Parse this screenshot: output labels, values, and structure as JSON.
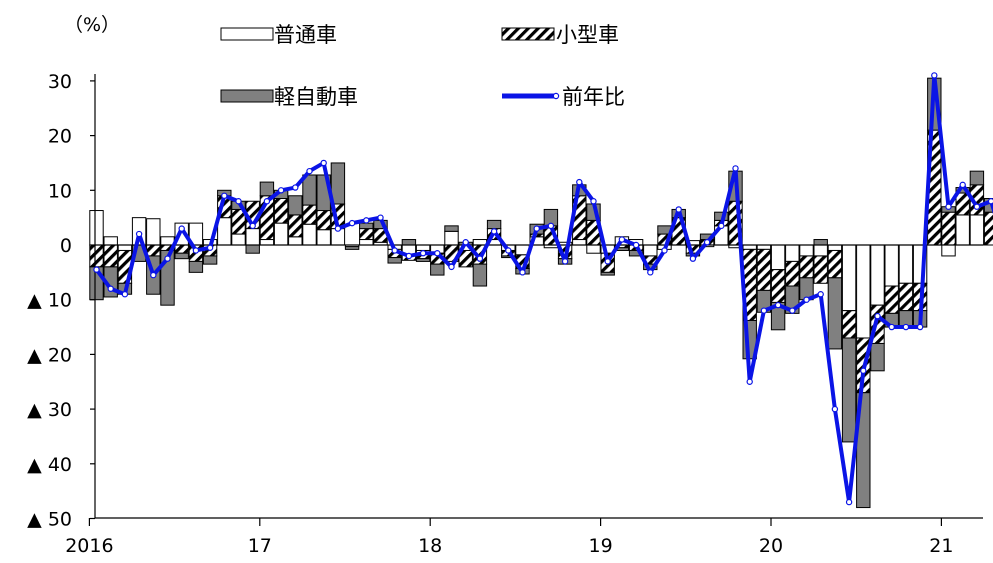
{
  "chart_data": {
    "type": "bar",
    "subtype": "stacked-bar-with-line",
    "unit_label": "（%）",
    "ylim": [
      -50,
      35
    ],
    "yticks": [
      {
        "value": 30,
        "label": "30"
      },
      {
        "value": 20,
        "label": "20"
      },
      {
        "value": 10,
        "label": "10"
      },
      {
        "value": 0,
        "label": "0"
      },
      {
        "value": -10,
        "label": "▲ 10"
      },
      {
        "value": -20,
        "label": "▲ 20"
      },
      {
        "value": -30,
        "label": "▲ 30"
      },
      {
        "value": -40,
        "label": "▲ 40"
      },
      {
        "value": -50,
        "label": "▲ 50"
      }
    ],
    "xticks": [
      {
        "index": 0,
        "label": "2016"
      },
      {
        "index": 12,
        "label": "17"
      },
      {
        "index": 24,
        "label": "18"
      },
      {
        "index": 36,
        "label": "19"
      },
      {
        "index": 48,
        "label": "20"
      },
      {
        "index": 60,
        "label": "21"
      }
    ],
    "legend": {
      "items": [
        {
          "key": "futsu",
          "label": "普通車"
        },
        {
          "key": "kogata",
          "label": "小型車"
        },
        {
          "key": "kei",
          "label": "軽自動車"
        },
        {
          "key": "yoy",
          "label": "前年比"
        }
      ]
    },
    "colors": {
      "futsu": "#ffffff",
      "kogata_hatch": "#000000",
      "kei": "#808080",
      "line": "#0a14e6",
      "marker_fill": "#ffffff"
    },
    "series": [
      {
        "name": "普通車",
        "key": "futsu",
        "values": [
          6.3,
          1.5,
          -1.0,
          5.0,
          4.8,
          1.5,
          4.0,
          4.0,
          1.0,
          5.0,
          2.0,
          3.0,
          1.0,
          4.0,
          1.5,
          3.8,
          2.8,
          3.0,
          -0.3,
          1.0,
          0.5,
          -0.8,
          -1.8,
          -1.0,
          -1.5,
          2.5,
          -1.0,
          1.0,
          1.0,
          -1.0,
          -1.8,
          1.5,
          -0.5,
          0.5,
          1.0,
          -1.5,
          -1.5,
          1.5,
          1.0,
          -2.0,
          -0.8,
          0.0,
          0.8,
          -0.3,
          3.5,
          -0.5,
          -0.8,
          -0.8,
          -4.5,
          -3.0,
          -2.0,
          -2.0,
          -1.0,
          -12.0,
          -17.0,
          -11.0,
          -7.5,
          -7.0,
          -7.0,
          0.0,
          -2.0,
          5.5,
          5.5,
          0.0,
          -0.5
        ]
      },
      {
        "name": "小型車",
        "key": "kogata",
        "values": [
          -4.0,
          -4.0,
          -6.0,
          0.0,
          -2.0,
          -1.0,
          -1.5,
          -3.0,
          -2.0,
          4.0,
          4.5,
          5.0,
          8.0,
          4.5,
          4.0,
          3.5,
          3.5,
          4.5,
          0.0,
          2.0,
          2.5,
          -1.5,
          -1.0,
          -1.5,
          -2.0,
          -3.0,
          -3.0,
          -3.5,
          2.0,
          -1.0,
          -2.5,
          0.5,
          3.5,
          -2.5,
          8.0,
          4.5,
          -3.5,
          -0.5,
          -1.0,
          -1.5,
          2.0,
          5.0,
          -1.5,
          1.0,
          1.0,
          8.0,
          -13.0,
          -7.5,
          -6.0,
          -4.5,
          -4.0,
          -5.0,
          -5.0,
          -5.0,
          -10.0,
          -7.0,
          -5.0,
          -5.0,
          -5.0,
          21.0,
          6.0,
          4.0,
          5.5,
          6.0,
          -2.5
        ]
      },
      {
        "name": "軽自動車",
        "key": "kei",
        "values": [
          -6.0,
          -5.5,
          -2.0,
          -3.0,
          -7.0,
          -10.0,
          -1.0,
          -2.0,
          -1.5,
          1.0,
          1.5,
          -1.5,
          2.5,
          1.5,
          3.5,
          5.5,
          6.5,
          7.5,
          -0.5,
          1.0,
          1.5,
          -1.0,
          1.0,
          -0.5,
          -2.0,
          1.0,
          0.5,
          -4.0,
          1.5,
          -0.3,
          -1.0,
          1.8,
          3.0,
          -1.0,
          2.0,
          3.0,
          -0.5,
          -0.5,
          -1.0,
          -1.0,
          1.5,
          1.5,
          -0.5,
          1.0,
          1.5,
          5.5,
          -7.0,
          -4.0,
          -5.0,
          -5.0,
          -4.0,
          1.0,
          -13.0,
          -19.0,
          -21.0,
          -5.0,
          -2.5,
          -3.0,
          -3.0,
          9.5,
          1.0,
          1.0,
          2.5,
          2.5,
          -1.0
        ]
      },
      {
        "name": "前年比",
        "key": "yoy",
        "type": "line",
        "values": [
          -4.5,
          -8.0,
          -9.0,
          2.0,
          -5.5,
          -2.5,
          3.0,
          -1.0,
          -0.5,
          9.0,
          8.0,
          3.5,
          8.0,
          10.0,
          10.5,
          13.5,
          15.0,
          3.0,
          4.0,
          4.5,
          5.0,
          -1.0,
          -2.0,
          -1.5,
          -1.5,
          -4.0,
          0.5,
          -2.5,
          2.5,
          -1.0,
          -5.0,
          3.0,
          3.5,
          -3.0,
          11.5,
          8.0,
          -3.0,
          1.0,
          0.0,
          -5.0,
          -1.0,
          6.5,
          -2.5,
          0.5,
          3.5,
          14.0,
          -25.0,
          -12.0,
          -11.0,
          -12.0,
          -10.0,
          -9.0,
          -30.0,
          -47.0,
          -23.0,
          -13.0,
          -15.0,
          -15.0,
          -15.0,
          31.0,
          7.0,
          11.0,
          7.0,
          8.0,
          -0.5
        ]
      }
    ]
  }
}
